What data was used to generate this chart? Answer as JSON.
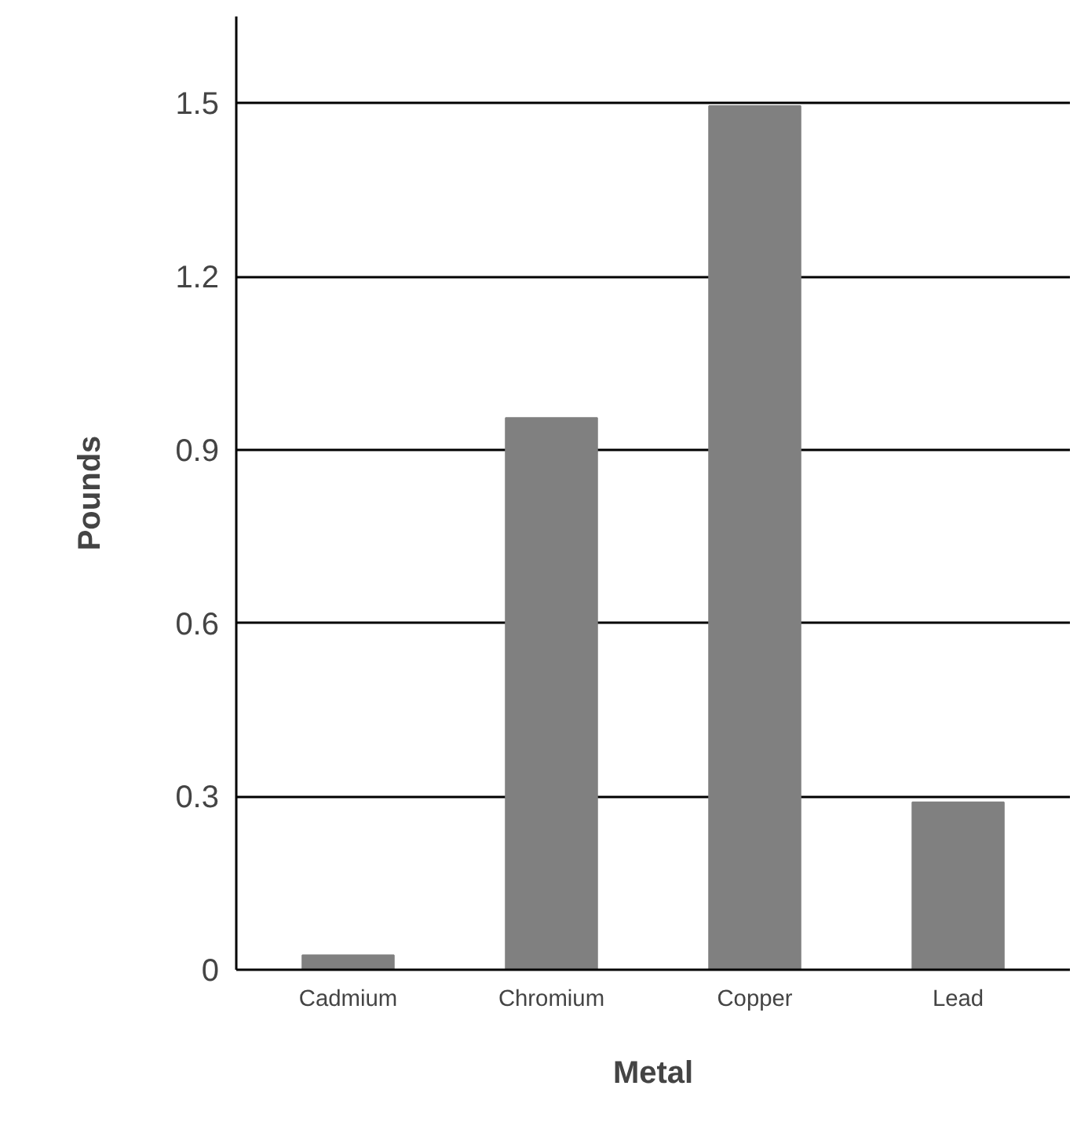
{
  "chart_data": {
    "type": "bar",
    "xlabel": "Metal",
    "ylabel": "Pounds",
    "categories": [
      "Cadmium",
      "Chromium",
      "Copper",
      "Lead"
    ],
    "values": [
      0.025,
      0.955,
      1.495,
      0.29
    ],
    "color": "#808080",
    "ylim": [
      0,
      1.65
    ],
    "yticks": [
      {
        "value": 0,
        "label": "0"
      },
      0.3,
      0.6,
      0.9,
      1.2,
      1.5
    ],
    "grid": "y"
  }
}
